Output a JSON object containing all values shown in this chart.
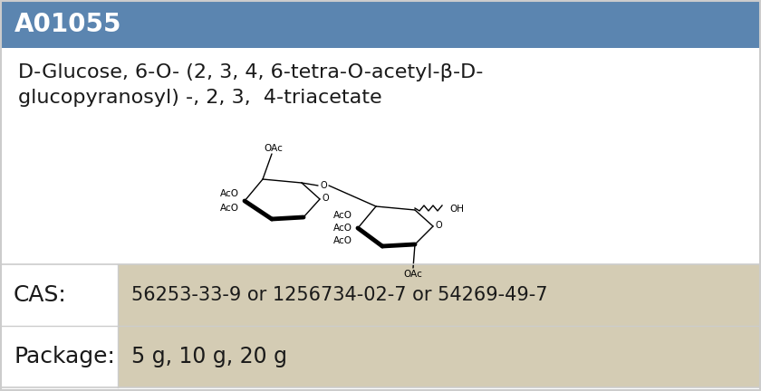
{
  "header_text": "A01055",
  "header_bg": "#5b85b0",
  "header_text_color": "#ffffff",
  "header_font_size": 20,
  "body_bg": "#ffffff",
  "name_line1": "D-Glucose, 6-O- (2, 3, 4, 6-tetra-O-acetyl-β-D-",
  "name_line2": "glucopyranosyl) -, 2, 3,  4-triacetate",
  "name_font_size": 16,
  "name_color": "#1a1a1a",
  "cas_label": "CAS:",
  "cas_value": "56253-33-9 or 1256734-02-7 or 54269-49-7",
  "package_label": "Package:",
  "package_value": "5 g, 10 g, 20 g",
  "table_label_color": "#1a1a1a",
  "table_value_bg": "#d4ccb4",
  "table_label_font_size": 18,
  "table_value_font_size": 15,
  "border_color": "#cccccc",
  "fig_width": 8.4,
  "fig_height": 4.32
}
